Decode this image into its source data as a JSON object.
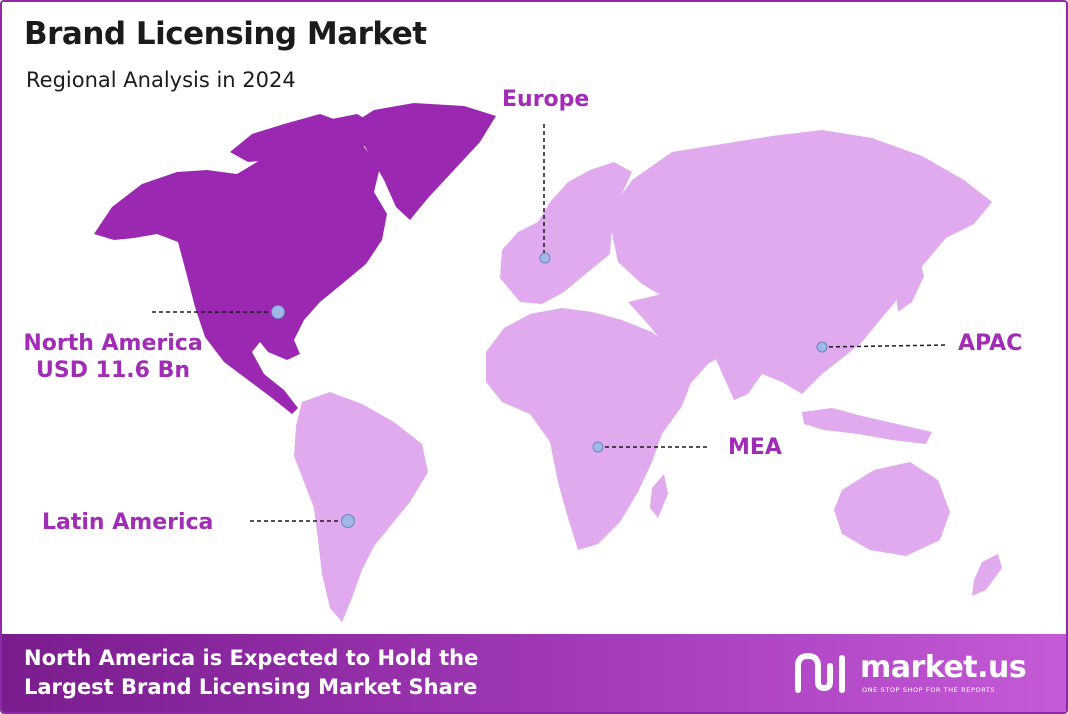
{
  "header": {
    "title": "Brand Licensing Market",
    "subtitle": "Regional Analysis in 2024"
  },
  "colors": {
    "highlight_region": "#9a28b0",
    "other_regions": "#e1a9ee",
    "label_text": "#a12cb5",
    "marker": "#9fb8e6",
    "footer_gradient": [
      "#7a1c8e",
      "#c45ad6"
    ]
  },
  "regions": [
    {
      "id": "north-america",
      "lines": [
        "North America",
        "USD 11.6 Bn"
      ],
      "highlighted": true
    },
    {
      "id": "europe",
      "lines": [
        "Europe"
      ],
      "highlighted": false
    },
    {
      "id": "apac",
      "lines": [
        "APAC"
      ],
      "highlighted": false
    },
    {
      "id": "mea",
      "lines": [
        "MEA"
      ],
      "highlighted": false
    },
    {
      "id": "latin-america",
      "lines": [
        "Latin America"
      ],
      "highlighted": false
    }
  ],
  "footer": {
    "line1": "North America is Expected to Hold the",
    "line2": "Largest Brand Licensing Market Share"
  },
  "brand": {
    "name": "market.us",
    "tagline": "ONE STOP SHOP FOR THE REPORTS"
  }
}
